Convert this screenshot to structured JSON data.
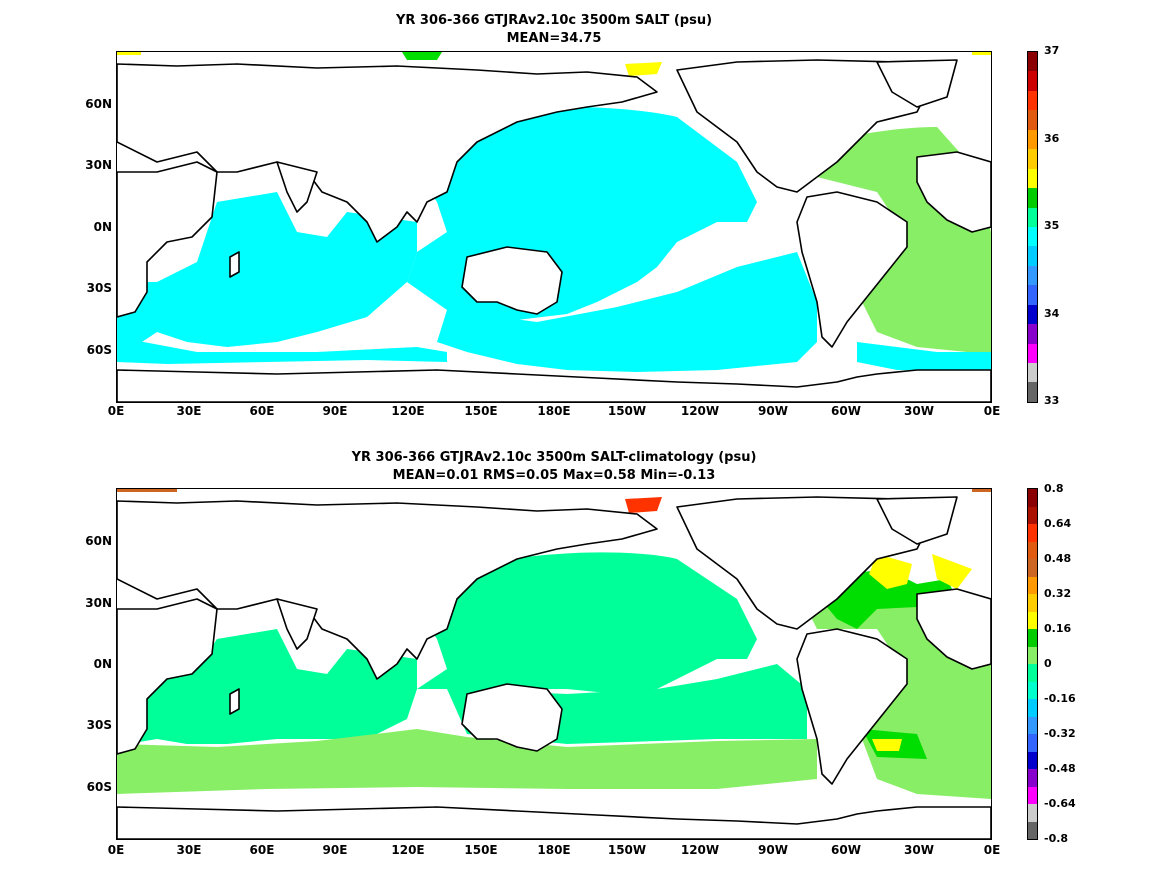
{
  "panels": [
    {
      "title_line1": "YR 306-366 GTJRAv2.10c 3500m SALT (psu)",
      "title_line2": "MEAN=34.75",
      "colorbar_labels": [
        "37",
        "36",
        "35",
        "34",
        "33"
      ],
      "colorbar_colors": [
        "#8b0000",
        "#cc0000",
        "#ff3300",
        "#e05a10",
        "#ff9900",
        "#ffcc00",
        "#ffff00",
        "#00cc00",
        "#00ff99",
        "#00ffff",
        "#00ccff",
        "#3399ff",
        "#3366ff",
        "#0000cc",
        "#8800cc",
        "#ff00ff",
        "#cccccc",
        "#666666"
      ],
      "fill_colors": {
        "ocean_main": "#00ffff",
        "atlantic": "#88ee66",
        "arctic_yellow": "#ffff00",
        "arctic_green": "#00dd00"
      }
    },
    {
      "title_line1": "YR 306-366 GTJRAv2.10c 3500m SALT-climatology (psu)",
      "title_line2": "MEAN=0.01   RMS=0.05   Max=0.58   Min=-0.13",
      "colorbar_labels": [
        "0.8",
        "0.64",
        "0.48",
        "0.32",
        "0.16",
        "0",
        "-0.16",
        "-0.32",
        "-0.48",
        "-0.64",
        "-0.8"
      ],
      "colorbar_colors": [
        "#8b0000",
        "#aa1100",
        "#ff3300",
        "#e05a10",
        "#cc6622",
        "#ff9900",
        "#ffcc00",
        "#ffff00",
        "#00cc00",
        "#88ee66",
        "#00ff99",
        "#00ffcc",
        "#00ccff",
        "#3399ff",
        "#3366ff",
        "#0000cc",
        "#8800cc",
        "#ff00ff",
        "#cccccc",
        "#666666"
      ],
      "fill_colors": {
        "ocean_main": "#00ff99",
        "south_band": "#88ee66",
        "n_atlantic": "#00dd00",
        "n_atlantic_yellow": "#ffff00",
        "arctic": "#cc6622",
        "arctic_red": "#ff3300"
      }
    }
  ],
  "lat_labels": [
    "60N",
    "30N",
    "0N",
    "30S",
    "60S"
  ],
  "lon_labels": [
    "0E",
    "30E",
    "60E",
    "90E",
    "120E",
    "150E",
    "180E",
    "150W",
    "120W",
    "90W",
    "60W",
    "30W",
    "0E"
  ]
}
